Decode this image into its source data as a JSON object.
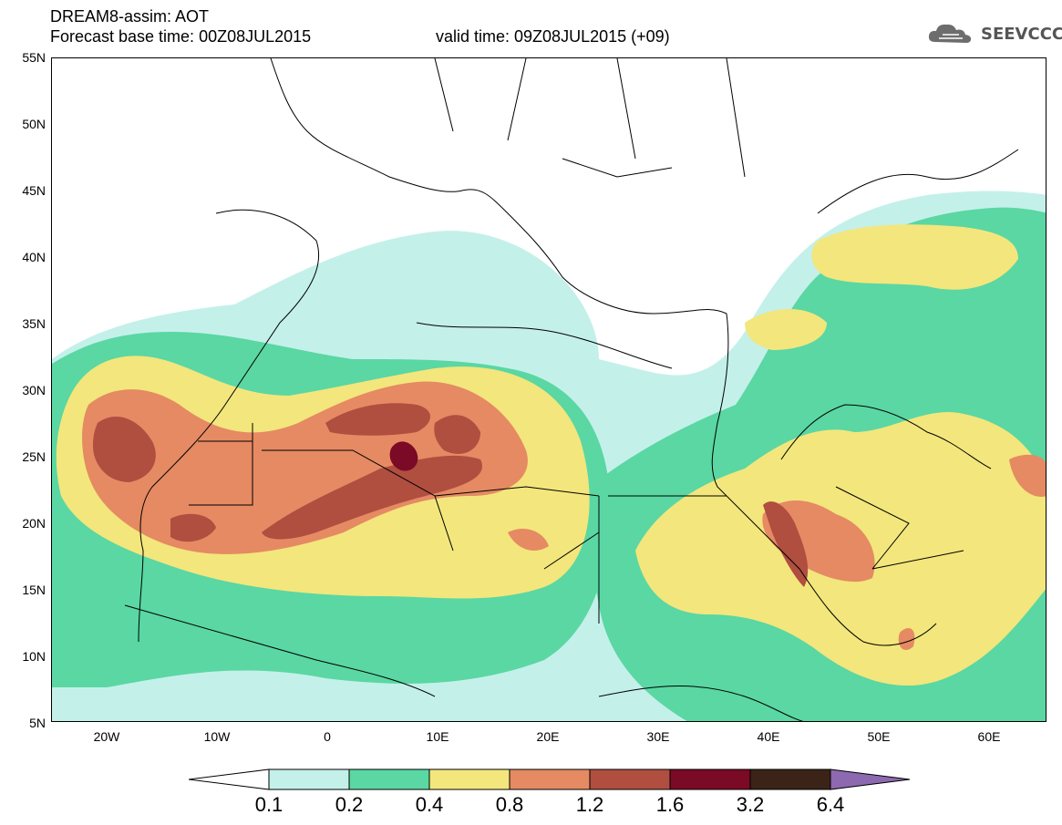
{
  "header": {
    "title_line1": "DREAM8-assim: AOT",
    "title_line2": "Forecast base time: 00Z08JUL2015",
    "valid_time": "valid time: 09Z08JUL2015 (+09)",
    "logo_text": "SEEVCCC"
  },
  "map": {
    "variable": "AOT",
    "lat_labels": [
      "55N",
      "50N",
      "45N",
      "40N",
      "35N",
      "30N",
      "25N",
      "20N",
      "15N",
      "10N",
      "5N"
    ],
    "lon_labels": [
      "20W",
      "10W",
      "0",
      "10E",
      "20E",
      "30E",
      "40E",
      "50E",
      "60E"
    ]
  },
  "legend": {
    "levels": [
      "0.1",
      "0.2",
      "0.4",
      "0.8",
      "1.2",
      "1.6",
      "3.2",
      "6.4"
    ],
    "colors": {
      "below": "#ffffff",
      "c1": "#c4f0ea",
      "c2": "#5ad7a3",
      "c3": "#f3e67c",
      "c4": "#e58a63",
      "c5": "#b04e40",
      "c6": "#7a0a25",
      "c7": "#3b2318",
      "above": "#8d69b0"
    }
  }
}
